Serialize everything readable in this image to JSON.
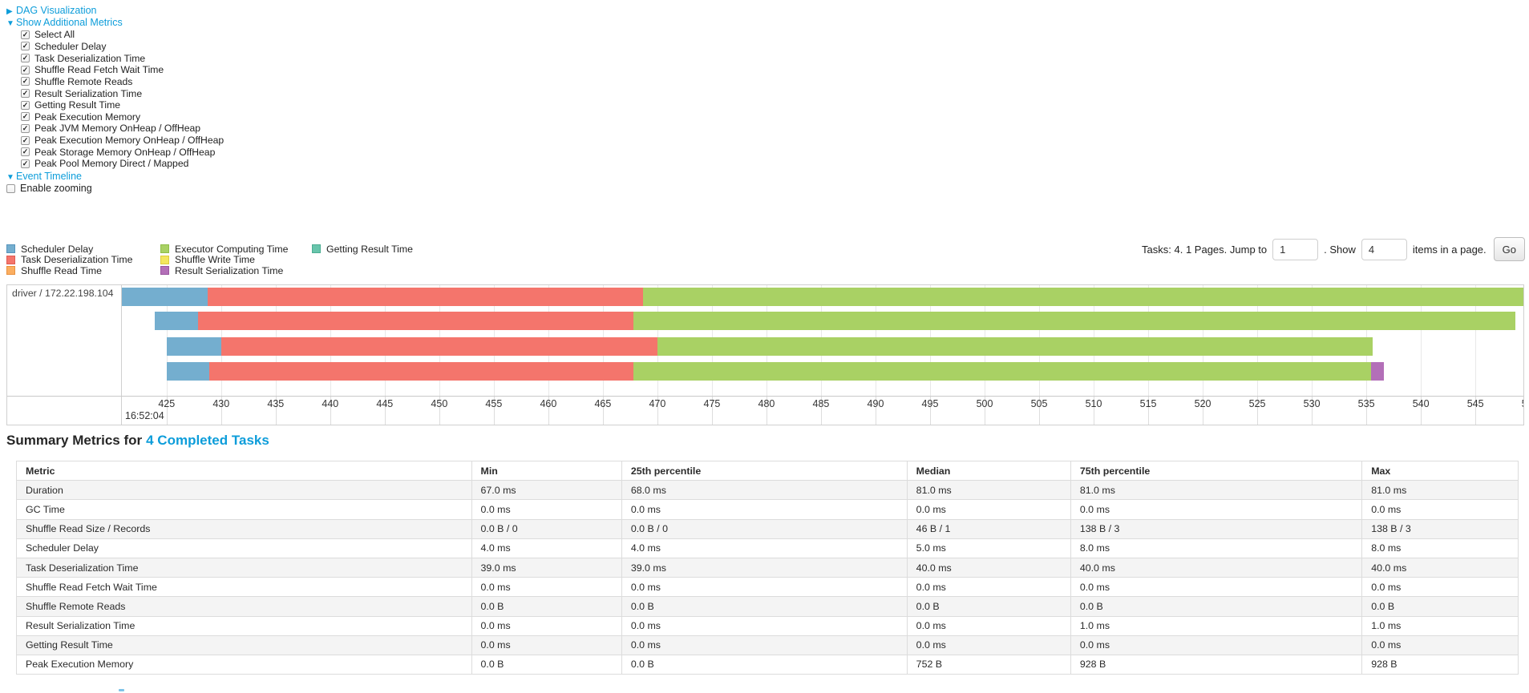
{
  "colors": {
    "link": "#0d9dda",
    "scheduler_delay": "#74aecf",
    "task_deserialization": "#f4756c",
    "shuffle_read": "#fbae60",
    "executor_computing": "#a9d164",
    "shuffle_write": "#f3e65e",
    "result_serialization": "#b36fb8",
    "getting_result": "#68c5ac"
  },
  "controls": {
    "dag_label": "DAG Visualization",
    "metrics_toggle_label": "Show Additional Metrics",
    "metric_checkboxes": [
      {
        "label": "Select All",
        "checked": true
      },
      {
        "label": "Scheduler Delay",
        "checked": true
      },
      {
        "label": "Task Deserialization Time",
        "checked": true
      },
      {
        "label": "Shuffle Read Fetch Wait Time",
        "checked": true
      },
      {
        "label": "Shuffle Remote Reads",
        "checked": true
      },
      {
        "label": "Result Serialization Time",
        "checked": true
      },
      {
        "label": "Getting Result Time",
        "checked": true
      },
      {
        "label": "Peak Execution Memory",
        "checked": true
      },
      {
        "label": "Peak JVM Memory OnHeap / OffHeap",
        "checked": true
      },
      {
        "label": "Peak Execution Memory OnHeap / OffHeap",
        "checked": true
      },
      {
        "label": "Peak Storage Memory OnHeap / OffHeap",
        "checked": true
      },
      {
        "label": "Peak Pool Memory Direct / Mapped",
        "checked": true
      }
    ],
    "event_timeline_label": "Event Timeline",
    "enable_zooming": {
      "label": "Enable zooming",
      "checked": false
    }
  },
  "legend": {
    "columns": [
      {
        "items": [
          {
            "label": "Scheduler Delay",
            "fill": "#74aecf",
            "border": "#5694bc"
          },
          {
            "label": "Task Deserialization Time",
            "fill": "#f4756c",
            "border": "#e05b52"
          },
          {
            "label": "Shuffle Read Time",
            "fill": "#fbae60",
            "border": "#e8913f"
          }
        ]
      },
      {
        "items": [
          {
            "label": "Executor Computing Time",
            "fill": "#a9d164",
            "border": "#8fbe48"
          },
          {
            "label": "Shuffle Write Time",
            "fill": "#f3e65e",
            "border": "#dccb3e"
          },
          {
            "label": "Result Serialization Time",
            "fill": "#b36fb8",
            "border": "#9a55a0"
          }
        ]
      },
      {
        "items": [
          {
            "label": "Getting Result Time",
            "fill": "#68c5ac",
            "border": "#4bad92"
          }
        ]
      }
    ]
  },
  "pagination": {
    "prefix": "Tasks: 4. 1 Pages. Jump to",
    "jump_value": "1",
    "middle": ". Show",
    "show_value": "4",
    "suffix": "items in a page.",
    "go_label": "Go"
  },
  "chart_data": {
    "type": "timeline",
    "group_label": "driver / 172.22.198.104",
    "time_label": "16:52:04",
    "axis": {
      "min": 420.9,
      "max": 549.4,
      "tick_start": 425,
      "tick_step": 5,
      "tick_end": 550,
      "unit": "ms within 16:52:04"
    },
    "tasks": [
      {
        "segments": [
          {
            "metric": "scheduler_delay",
            "start": 420.9,
            "end": 428.8
          },
          {
            "metric": "task_deserialization",
            "start": 428.8,
            "end": 468.7
          },
          {
            "metric": "executor_computing",
            "start": 468.7,
            "end": 549.4
          }
        ]
      },
      {
        "segments": [
          {
            "metric": "scheduler_delay",
            "start": 423.9,
            "end": 427.9
          },
          {
            "metric": "task_deserialization",
            "start": 427.9,
            "end": 467.8
          },
          {
            "metric": "executor_computing",
            "start": 467.8,
            "end": 548.7
          }
        ]
      },
      {
        "segments": [
          {
            "metric": "scheduler_delay",
            "start": 425.0,
            "end": 430.0
          },
          {
            "metric": "task_deserialization",
            "start": 430.0,
            "end": 470.0
          },
          {
            "metric": "executor_computing",
            "start": 470.0,
            "end": 535.6
          }
        ]
      },
      {
        "segments": [
          {
            "metric": "scheduler_delay",
            "start": 425.0,
            "end": 428.9
          },
          {
            "metric": "task_deserialization",
            "start": 428.9,
            "end": 467.8
          },
          {
            "metric": "executor_computing",
            "start": 467.8,
            "end": 535.4
          },
          {
            "metric": "result_serialization",
            "start": 535.4,
            "end": 536.6
          }
        ]
      }
    ]
  },
  "summary": {
    "title_prefix": "Summary Metrics for",
    "title_link": "4 Completed Tasks",
    "table": {
      "headers": [
        "Metric",
        "Min",
        "25th percentile",
        "Median",
        "75th percentile",
        "Max"
      ],
      "rows": [
        {
          "metric": "Duration",
          "values": [
            "67.0 ms",
            "68.0 ms",
            "81.0 ms",
            "81.0 ms",
            "81.0 ms"
          ]
        },
        {
          "metric": "GC Time",
          "values": [
            "0.0 ms",
            "0.0 ms",
            "0.0 ms",
            "0.0 ms",
            "0.0 ms"
          ]
        },
        {
          "metric": "Shuffle Read Size / Records",
          "values": [
            "0.0 B / 0",
            "0.0 B / 0",
            "46 B / 1",
            "138 B / 3",
            "138 B / 3"
          ]
        },
        {
          "metric": "Scheduler Delay",
          "values": [
            "4.0 ms",
            "4.0 ms",
            "5.0 ms",
            "8.0 ms",
            "8.0 ms"
          ]
        },
        {
          "metric": "Task Deserialization Time",
          "values": [
            "39.0 ms",
            "39.0 ms",
            "40.0 ms",
            "40.0 ms",
            "40.0 ms"
          ]
        },
        {
          "metric": "Shuffle Read Fetch Wait Time",
          "values": [
            "0.0 ms",
            "0.0 ms",
            "0.0 ms",
            "0.0 ms",
            "0.0 ms"
          ]
        },
        {
          "metric": "Shuffle Remote Reads",
          "values": [
            "0.0 B",
            "0.0 B",
            "0.0 B",
            "0.0 B",
            "0.0 B"
          ]
        },
        {
          "metric": "Result Serialization Time",
          "values": [
            "0.0 ms",
            "0.0 ms",
            "0.0 ms",
            "1.0 ms",
            "1.0 ms"
          ]
        },
        {
          "metric": "Getting Result Time",
          "values": [
            "0.0 ms",
            "0.0 ms",
            "0.0 ms",
            "0.0 ms",
            "0.0 ms"
          ]
        },
        {
          "metric": "Peak Execution Memory",
          "values": [
            "0.0 B",
            "0.0 B",
            "752 B",
            "928 B",
            "928 B"
          ]
        }
      ]
    }
  }
}
